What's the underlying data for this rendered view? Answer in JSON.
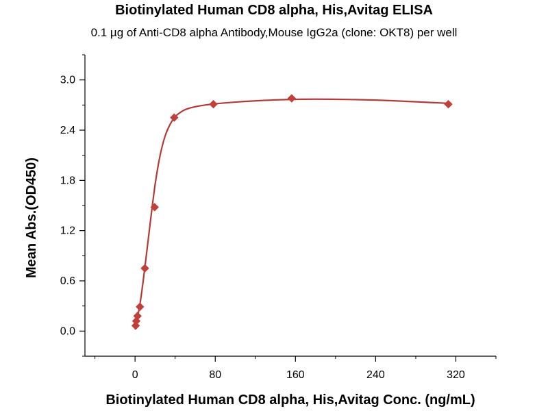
{
  "chart_data": {
    "type": "scatter",
    "title": "Biotinylated Human CD8 alpha, His,Avitag ELISA",
    "subtitle": "0.1 µg of Anti-CD8 alpha Antibody,Mouse IgG2a (clone: OKT8) per well",
    "xlabel": "Biotinylated Human CD8 alpha, His,Avitag Conc. (ng/mL)",
    "ylabel": "Mean Abs.(OD450)",
    "xlim": [
      -50,
      360
    ],
    "ylim": [
      -0.3,
      3.3
    ],
    "xticks": [
      "0",
      "80",
      "160",
      "240",
      "320"
    ],
    "yticks": [
      "0.0",
      "0.6",
      "1.2",
      "1.8",
      "2.4",
      "3.0"
    ],
    "grid": false,
    "series": [
      {
        "color": "#c0403b",
        "marker": "diamond",
        "x": [
          0.61,
          1.22,
          2.44,
          4.88,
          9.77,
          19.53,
          39.06,
          78.13,
          156.25,
          312.5
        ],
        "y": [
          0.065,
          0.12,
          0.18,
          0.29,
          0.75,
          1.48,
          2.55,
          2.71,
          2.78,
          2.71
        ]
      }
    ],
    "fit_curve": {
      "color": "#b33a35",
      "x": [
        0,
        5,
        10,
        15,
        20,
        25,
        30,
        35,
        40,
        45,
        50,
        55,
        60,
        70,
        80,
        100,
        120,
        150,
        180,
        220,
        260,
        312.5
      ],
      "y": [
        0.02,
        0.33,
        0.78,
        1.28,
        1.75,
        2.1,
        2.33,
        2.47,
        2.56,
        2.61,
        2.645,
        2.665,
        2.68,
        2.7,
        2.715,
        2.735,
        2.75,
        2.765,
        2.77,
        2.765,
        2.75,
        2.72
      ]
    }
  }
}
